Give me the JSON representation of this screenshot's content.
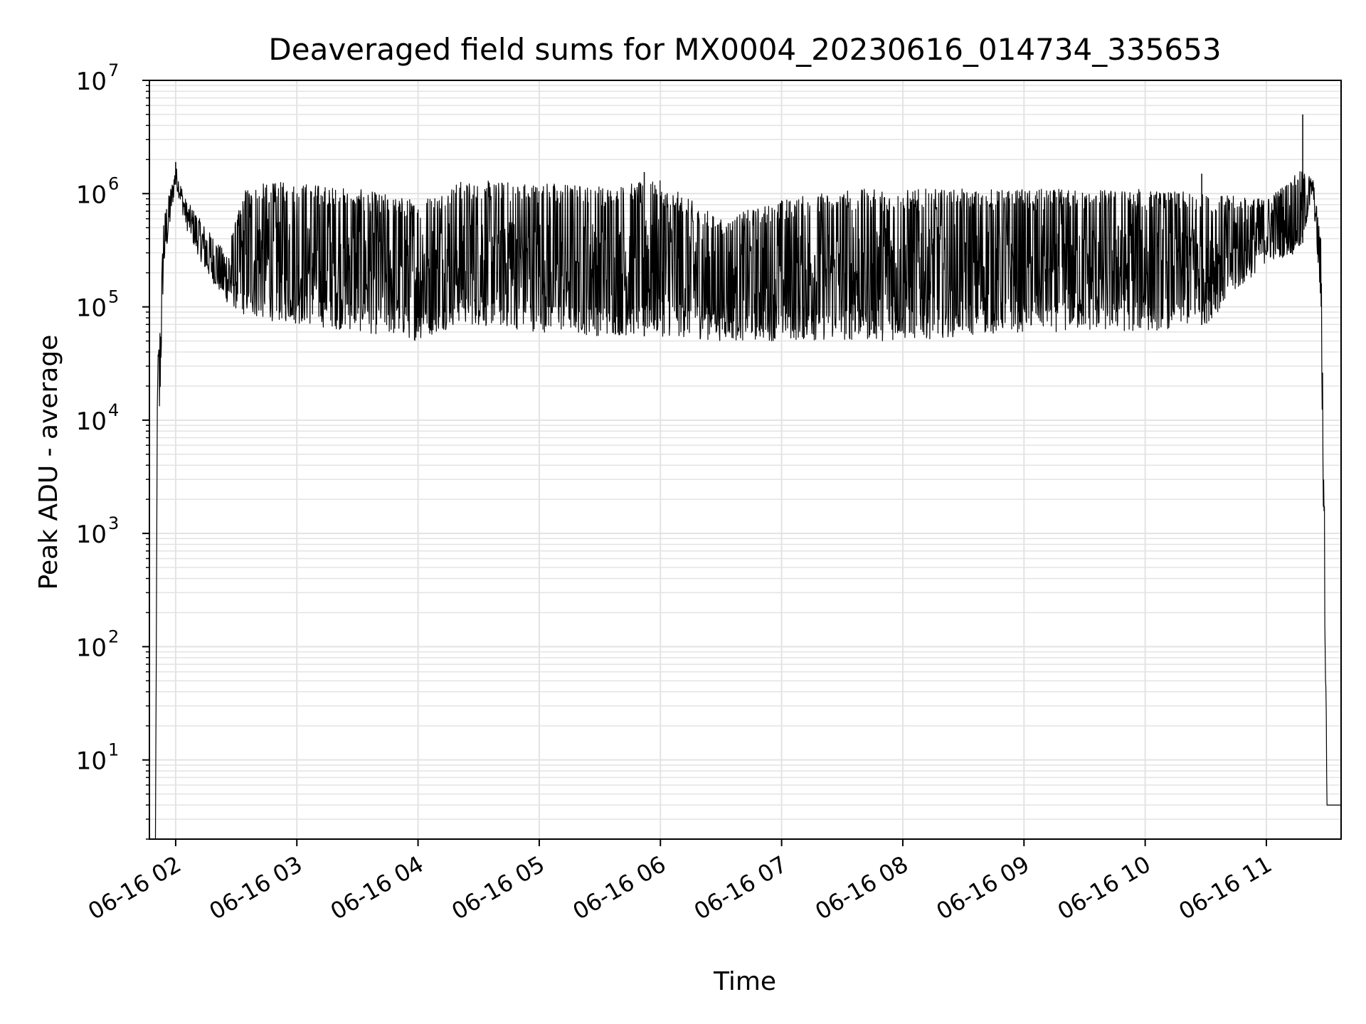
{
  "chart_data": {
    "type": "line",
    "title": "Deaveraged field sums for MX0004_20230616_014734_335653",
    "xlabel": "Time",
    "ylabel": "Peak ADU - average",
    "yscale": "log",
    "ylim": [
      2,
      10000000
    ],
    "xlim": [
      "2023-06-16 01:47",
      "2023-06-16 11:37"
    ],
    "x_ticks": [
      {
        "label": "06-16 02",
        "time": "2023-06-16 02:00"
      },
      {
        "label": "06-16 03",
        "time": "2023-06-16 03:00"
      },
      {
        "label": "06-16 04",
        "time": "2023-06-16 04:00"
      },
      {
        "label": "06-16 05",
        "time": "2023-06-16 05:00"
      },
      {
        "label": "06-16 06",
        "time": "2023-06-16 06:00"
      },
      {
        "label": "06-16 07",
        "time": "2023-06-16 07:00"
      },
      {
        "label": "06-16 08",
        "time": "2023-06-16 08:00"
      },
      {
        "label": "06-16 09",
        "time": "2023-06-16 09:00"
      },
      {
        "label": "06-16 10",
        "time": "2023-06-16 10:00"
      },
      {
        "label": "06-16 11",
        "time": "2023-06-16 11:00"
      }
    ],
    "y_ticks": [
      {
        "base": "10",
        "exp": "1",
        "value": 10
      },
      {
        "base": "10",
        "exp": "2",
        "value": 100
      },
      {
        "base": "10",
        "exp": "3",
        "value": 1000
      },
      {
        "base": "10",
        "exp": "4",
        "value": 10000
      },
      {
        "base": "10",
        "exp": "5",
        "value": 100000
      },
      {
        "base": "10",
        "exp": "6",
        "value": 1000000
      },
      {
        "base": "10",
        "exp": "7",
        "value": 10000000
      }
    ],
    "grid": true,
    "line_color": "#000000",
    "grid_color": "#e3e3e3",
    "series": [
      {
        "envelope_points": [
          {
            "time": "2023-06-16 01:50",
            "low": 2,
            "high": 2
          },
          {
            "time": "2023-06-16 01:51",
            "low": 20000,
            "high": 35000
          },
          {
            "time": "2023-06-16 01:52",
            "low": 9000,
            "high": 55000
          },
          {
            "time": "2023-06-16 01:54",
            "low": 200000,
            "high": 600000
          },
          {
            "time": "2023-06-16 02:00",
            "low": 1200000,
            "high": 1800000
          },
          {
            "time": "2023-06-16 02:05",
            "low": 500000,
            "high": 900000
          },
          {
            "time": "2023-06-16 02:15",
            "low": 200000,
            "high": 500000
          },
          {
            "time": "2023-06-16 02:25",
            "low": 110000,
            "high": 300000
          },
          {
            "time": "2023-06-16 02:35",
            "low": 80000,
            "high": 1200000
          },
          {
            "time": "2023-06-16 03:00",
            "low": 70000,
            "high": 1300000
          },
          {
            "time": "2023-06-16 03:30",
            "low": 60000,
            "high": 1100000
          },
          {
            "time": "2023-06-16 04:00",
            "low": 50000,
            "high": 900000
          },
          {
            "time": "2023-06-16 04:20",
            "low": 70000,
            "high": 1300000
          },
          {
            "time": "2023-06-16 05:00",
            "low": 60000,
            "high": 1300000
          },
          {
            "time": "2023-06-16 05:30",
            "low": 55000,
            "high": 1200000
          },
          {
            "time": "2023-06-16 06:00",
            "low": 55000,
            "high": 1300000
          },
          {
            "time": "2023-06-16 06:30",
            "low": 50000,
            "high": 600000
          },
          {
            "time": "2023-06-16 07:00",
            "low": 50000,
            "high": 900000
          },
          {
            "time": "2023-06-16 07:30",
            "low": 50000,
            "high": 1100000
          },
          {
            "time": "2023-06-16 08:00",
            "low": 50000,
            "high": 1100000
          },
          {
            "time": "2023-06-16 08:30",
            "low": 55000,
            "high": 1100000
          },
          {
            "time": "2023-06-16 09:00",
            "low": 60000,
            "high": 1100000
          },
          {
            "time": "2023-06-16 09:30",
            "low": 60000,
            "high": 1100000
          },
          {
            "time": "2023-06-16 10:00",
            "low": 60000,
            "high": 1100000
          },
          {
            "time": "2023-06-16 10:30",
            "low": 70000,
            "high": 1000000
          },
          {
            "time": "2023-06-16 11:00",
            "low": 250000,
            "high": 900000
          },
          {
            "time": "2023-06-16 11:17",
            "low": 300000,
            "high": 1600000
          },
          {
            "time": "2023-06-16 11:23",
            "low": 1000000,
            "high": 1400000
          },
          {
            "time": "2023-06-16 11:27",
            "low": 100000,
            "high": 400000
          },
          {
            "time": "2023-06-16 11:29",
            "low": 100,
            "high": 1000
          },
          {
            "time": "2023-06-16 11:30",
            "low": 4,
            "high": 4
          },
          {
            "time": "2023-06-16 11:37",
            "low": 4,
            "high": 4
          }
        ],
        "spikes": [
          {
            "time": "2023-06-16 11:18",
            "value": 5000000
          },
          {
            "time": "2023-06-16 02:00",
            "value": 1900000
          },
          {
            "time": "2023-06-16 05:52",
            "value": 1550000
          },
          {
            "time": "2023-06-16 10:28",
            "value": 1500000
          }
        ]
      }
    ]
  }
}
